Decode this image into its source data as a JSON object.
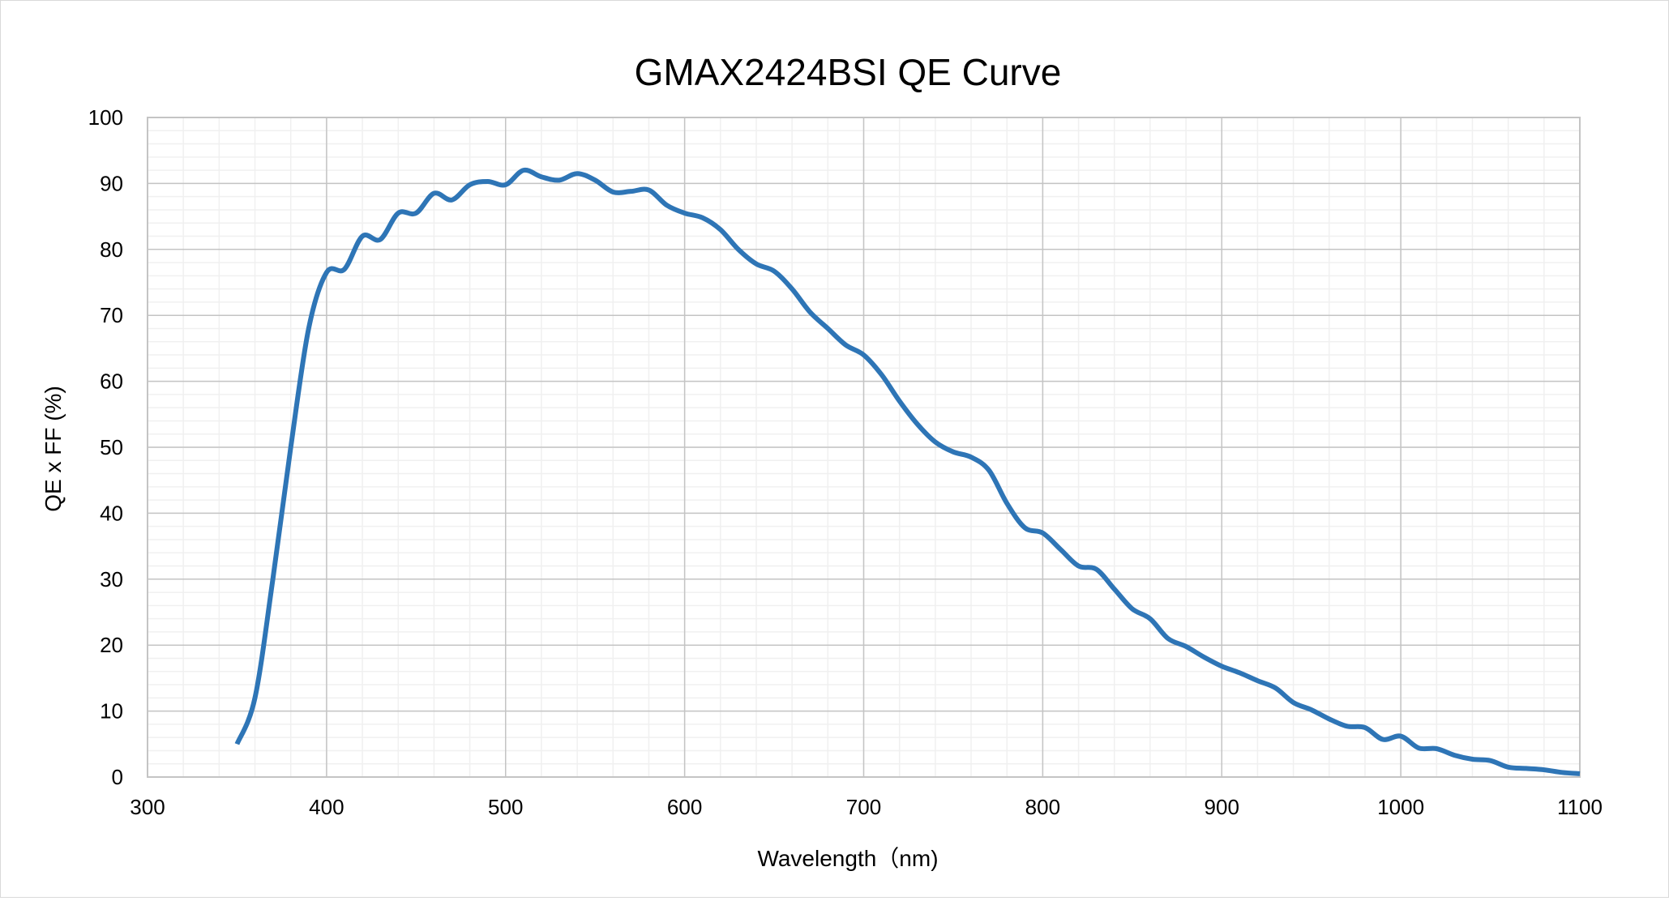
{
  "chart_data": {
    "type": "line",
    "title": "GMAX2424BSI  QE Curve",
    "xlabel": "Wavelength（nm)",
    "ylabel": "QE x FF (%)",
    "xlim": [
      300,
      1100
    ],
    "ylim": [
      0,
      100
    ],
    "xticks": [
      300,
      400,
      500,
      600,
      700,
      800,
      900,
      1000,
      1100
    ],
    "yticks": [
      0,
      10,
      20,
      30,
      40,
      50,
      60,
      70,
      80,
      90,
      100
    ],
    "grid": {
      "major": true,
      "minor": true,
      "x_minor_step": 20,
      "y_minor_step": 2
    },
    "legend": "none",
    "series": [
      {
        "color": "#2e75b6",
        "x": [
          350,
          360,
          370,
          380,
          390,
          400,
          410,
          420,
          430,
          440,
          450,
          460,
          470,
          480,
          490,
          500,
          510,
          520,
          530,
          540,
          550,
          560,
          570,
          580,
          590,
          600,
          610,
          620,
          630,
          640,
          650,
          660,
          670,
          680,
          690,
          700,
          710,
          720,
          730,
          740,
          750,
          760,
          770,
          780,
          790,
          800,
          810,
          820,
          830,
          840,
          850,
          860,
          870,
          880,
          890,
          900,
          910,
          920,
          930,
          940,
          950,
          960,
          970,
          980,
          990,
          1000,
          1010,
          1020,
          1030,
          1040,
          1050,
          1060,
          1070,
          1080,
          1090,
          1100
        ],
        "y": [
          5,
          12,
          30,
          50,
          68,
          76.5,
          77,
          82,
          81.5,
          85.5,
          85.5,
          88.5,
          87.5,
          89.8,
          90.3,
          89.8,
          92,
          91,
          90.5,
          91.5,
          90.5,
          88.7,
          88.8,
          89,
          86.7,
          85.5,
          84.8,
          83,
          80,
          77.8,
          76.7,
          74,
          70.5,
          68,
          65.5,
          64,
          61,
          57,
          53.5,
          50.8,
          49.3,
          48.5,
          46.5,
          41.5,
          37.8,
          37,
          34.5,
          32,
          31.5,
          28.5,
          25.5,
          24,
          21,
          19.8,
          18.2,
          16.8,
          15.8,
          14.6,
          13.5,
          11.3,
          10.2,
          8.8,
          7.7,
          7.5,
          5.7,
          6.2,
          4.4,
          4.3,
          3.3,
          2.7,
          2.5,
          1.5,
          1.3,
          1.1,
          0.7,
          0.5
        ]
      }
    ]
  }
}
